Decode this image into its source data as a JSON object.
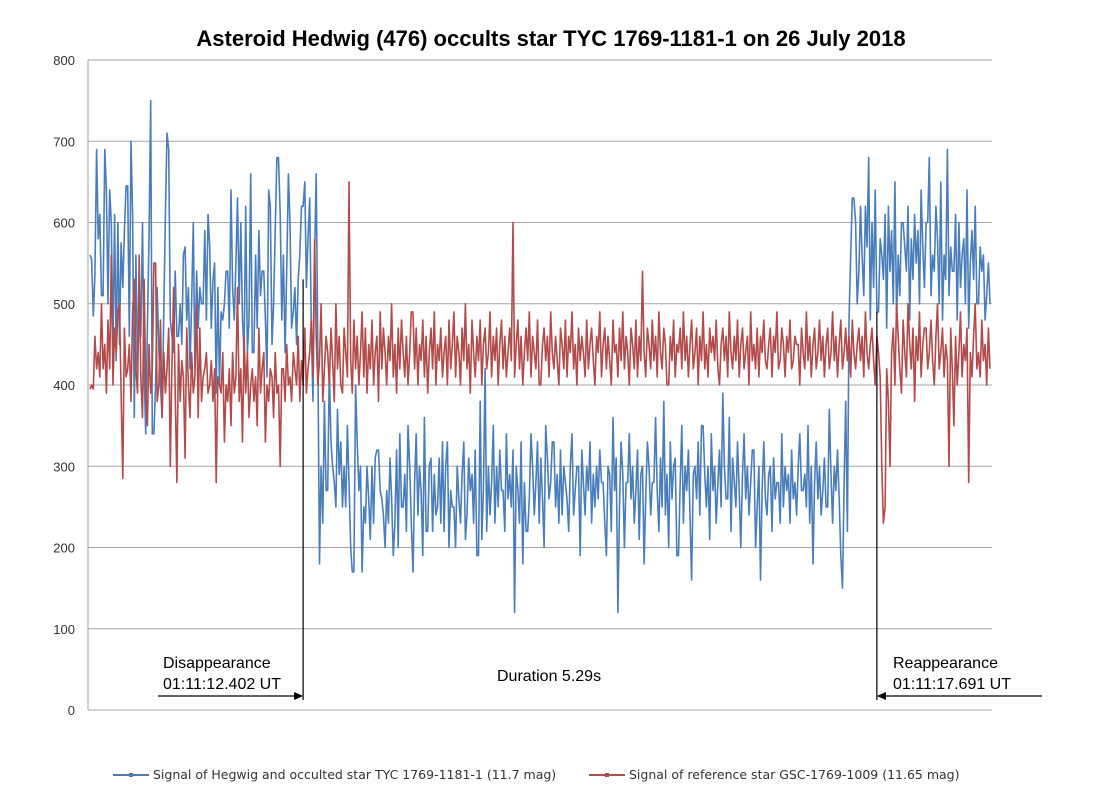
{
  "chart_data": {
    "type": "line",
    "title": "Asteroid Hedwig (476) occults star TYC 1769-1181-1 on 26 July 2018",
    "xlabel": "",
    "ylabel": "",
    "ylim": [
      0,
      800
    ],
    "yticks": [
      0,
      100,
      200,
      300,
      400,
      500,
      600,
      700,
      800
    ],
    "grid": true,
    "legend_position": "bottom",
    "n_samples": 550,
    "annotations": {
      "disappearance_label": "Disappearance",
      "disappearance_time": "01:11:12.402 UT",
      "reappearance_label": "Reappearance",
      "reappearance_time": "01:11:17.691 UT",
      "duration": "Duration 5.29s",
      "disappearance_index": 130,
      "reappearance_index": 480
    },
    "series": [
      {
        "name": "Signal of Hegwig and occulted star TYC 1769-1181-1 (11.7 mag)",
        "color": "#4a7ebb",
        "values": [
          560,
          555,
          485,
          535,
          690,
          580,
          610,
          510,
          690,
          640,
          500,
          640,
          600,
          450,
          610,
          430,
          600,
          450,
          575,
          520,
          590,
          645,
          460,
          700,
          610,
          360,
          560,
          420,
          490,
          460,
          600,
          420,
          340,
          470,
          580,
          750,
          340,
          400,
          520,
          440,
          400,
          360,
          490,
          610,
          710,
          690,
          480,
          460,
          440,
          540,
          460,
          500,
          450,
          560,
          570,
          480,
          520,
          420,
          500,
          600,
          420,
          540,
          470,
          520,
          500,
          590,
          480,
          610,
          570,
          470,
          530,
          550,
          390,
          520,
          400,
          490,
          480,
          500,
          540,
          470,
          640,
          520,
          480,
          550,
          630,
          500,
          600,
          480,
          440,
          620,
          440,
          480,
          660,
          440,
          560,
          470,
          590,
          510,
          540,
          540,
          480,
          410,
          640,
          620,
          450,
          500,
          590,
          680,
          610,
          480,
          560,
          440,
          540,
          660,
          600,
          470,
          490,
          520,
          450,
          530,
          560,
          620,
          650,
          520,
          580,
          630,
          470,
          380,
          560,
          660,
          430,
          180,
          300,
          230,
          380,
          270,
          420,
          330,
          300,
          280,
          250,
          370,
          290,
          330,
          250,
          300,
          250,
          350,
          280,
          200,
          170,
          400,
          330,
          270,
          300,
          170,
          250,
          230,
          300,
          260,
          210,
          300,
          230,
          310,
          320,
          270,
          260,
          240,
          200,
          270,
          230,
          310,
          260,
          190,
          230,
          320,
          200,
          340,
          250,
          290,
          220,
          350,
          300,
          230,
          170,
          280,
          340,
          240,
          300,
          270,
          190,
          360,
          220,
          300,
          310,
          220,
          290,
          240,
          250,
          310,
          230,
          330,
          220,
          300,
          330,
          200,
          270,
          250,
          200,
          300,
          260,
          230,
          290,
          330,
          210,
          240,
          310,
          270,
          290,
          230,
          320,
          190,
          380,
          210,
          270,
          420,
          220,
          300,
          240,
          280,
          350,
          230,
          300,
          250,
          320,
          270,
          220,
          340,
          260,
          290,
          250,
          320,
          120,
          300,
          270,
          230,
          330,
          180,
          280,
          220,
          260,
          340,
          300,
          240,
          280,
          330,
          230,
          310,
          260,
          200,
          350,
          310,
          260,
          280,
          330,
          250,
          290,
          230,
          320,
          240,
          300,
          280,
          260,
          220,
          300,
          340,
          240,
          270,
          300,
          190,
          320,
          280,
          240,
          300,
          270,
          330,
          230,
          290,
          250,
          300,
          260,
          320,
          280,
          230,
          190,
          300,
          290,
          220,
          360,
          270,
          310,
          120,
          250,
          330,
          290,
          200,
          280,
          340,
          260,
          300,
          230,
          270,
          320,
          210,
          290,
          300,
          180,
          260,
          330,
          300,
          240,
          280,
          360,
          270,
          220,
          310,
          250,
          380,
          240,
          290,
          200,
          330,
          260,
          300,
          310,
          190,
          280,
          350,
          230,
          300,
          270,
          320,
          240,
          160,
          290,
          300,
          260,
          330,
          240,
          350,
          290,
          250,
          300,
          210,
          340,
          270,
          300,
          230,
          280,
          320,
          250,
          390,
          300,
          260,
          360,
          220,
          310,
          280,
          250,
          330,
          270,
          200,
          290,
          340,
          260,
          300,
          240,
          280,
          320,
          200,
          250,
          300,
          160,
          270,
          330,
          260,
          240,
          290,
          300,
          220,
          310,
          260,
          280,
          230,
          340,
          250,
          300,
          270,
          290,
          230,
          320,
          260,
          280,
          240,
          300,
          340,
          270,
          290,
          250,
          350,
          230,
          300,
          180,
          280,
          330,
          260,
          300,
          240,
          270,
          310,
          250,
          370,
          290,
          230,
          300,
          270,
          320,
          260,
          190,
          150,
          280,
          380,
          220,
          480,
          560,
          630,
          600,
          500,
          540,
          620,
          560,
          510,
          620,
          570,
          680,
          480,
          600,
          520,
          640,
          490,
          580,
          560,
          530,
          610,
          470,
          620,
          540,
          590,
          500,
          650,
          480,
          560,
          510,
          600,
          570,
          540,
          620,
          480,
          580,
          530,
          610,
          550,
          590,
          500,
          640,
          570,
          520,
          600,
          680,
          510,
          560,
          540,
          620,
          580,
          500,
          650,
          480,
          560,
          530,
          690,
          510,
          570,
          540,
          610,
          480,
          600,
          520,
          560,
          580,
          500,
          640,
          470,
          550,
          590,
          530,
          620,
          500,
          570,
          540,
          560,
          480,
          510,
          550,
          500
        ]
      },
      {
        "name": "Signal of reference star GSC-1769-1009 (11.65 mag)",
        "color": "#b24b4a",
        "values": [
          395,
          400,
          395,
          460,
          420,
          440,
          410,
          500,
          420,
          450,
          390,
          480,
          420,
          560,
          400,
          470,
          440,
          490,
          500,
          390,
          285,
          470,
          410,
          420,
          450,
          380,
          490,
          530,
          420,
          390,
          560,
          410,
          360,
          530,
          400,
          350,
          450,
          390,
          420,
          550,
          380,
          400,
          480,
          360,
          440,
          390,
          420,
          470,
          300,
          430,
          520,
          390,
          280,
          450,
          380,
          430,
          410,
          310,
          470,
          400,
          360,
          440,
          390,
          410,
          500,
          360,
          470,
          380,
          410,
          420,
          440,
          390,
          400,
          430,
          380,
          420,
          280,
          410,
          400,
          390,
          440,
          330,
          400,
          380,
          420,
          350,
          440,
          390,
          410,
          520,
          380,
          420,
          330,
          460,
          390,
          440,
          360,
          400,
          420,
          380,
          410,
          350,
          470,
          390,
          420,
          440,
          330,
          400,
          380,
          420,
          410,
          360,
          440,
          390,
          400,
          300,
          420,
          380,
          450,
          400,
          410,
          380,
          440,
          420,
          400,
          460,
          380,
          430,
          400,
          470,
          390,
          420,
          440,
          480,
          410,
          580,
          460,
          400,
          430,
          500,
          380,
          420,
          460,
          440,
          400,
          470,
          430,
          380,
          500,
          420,
          460,
          400,
          390,
          470,
          440,
          410,
          650,
          430,
          390,
          480,
          420,
          460,
          400,
          440,
          490,
          410,
          470,
          390,
          450,
          420,
          480,
          400,
          440,
          460,
          380,
          490,
          420,
          470,
          440,
          400,
          460,
          430,
          500,
          410,
          450,
          390,
          470,
          420,
          480,
          440,
          410,
          460,
          400,
          440,
          490,
          420,
          470,
          400,
          450,
          430,
          480,
          410,
          460,
          390,
          440,
          470,
          420,
          490,
          400,
          450,
          430,
          470,
          410,
          440,
          460,
          400,
          480,
          420,
          450,
          490,
          410,
          460,
          440,
          400,
          470,
          430,
          500,
          420,
          450,
          390,
          480,
          440,
          410,
          460,
          430,
          480,
          400,
          450,
          470,
          420,
          440,
          490,
          410,
          460,
          430,
          470,
          400,
          450,
          480,
          420,
          460,
          410,
          440,
          470,
          430,
          600,
          410,
          450,
          480,
          420,
          460,
          400,
          440,
          470,
          430,
          490,
          410,
          460,
          440,
          420,
          480,
          400,
          450,
          470,
          430,
          460,
          410,
          490,
          440,
          420,
          460,
          430,
          400,
          470,
          450,
          420,
          480,
          410,
          460,
          440,
          490,
          420,
          450,
          400,
          470,
          430,
          460,
          440,
          410,
          480,
          420,
          450,
          470,
          430,
          400,
          460,
          440,
          490,
          410,
          450,
          470,
          420,
          460,
          430,
          400,
          480,
          440,
          450,
          410,
          470,
          430,
          490,
          420,
          460,
          440,
          400,
          470,
          450,
          420,
          480,
          410,
          460,
          430,
          540,
          440,
          410,
          470,
          450,
          420,
          480,
          430,
          460,
          410,
          490,
          440,
          420,
          470,
          450,
          400,
          460,
          430,
          480,
          410,
          450,
          440,
          470,
          420,
          490,
          430,
          460,
          410,
          450,
          480,
          420,
          440,
          470,
          400,
          460,
          430,
          490,
          420,
          450,
          410,
          470,
          440,
          460,
          430,
          480,
          420,
          400,
          450,
          470,
          430,
          460,
          410,
          490,
          440,
          420,
          460,
          430,
          480,
          410,
          450,
          470,
          420,
          440,
          460,
          400,
          490,
          430,
          450,
          420,
          470,
          410,
          460,
          440,
          480,
          430,
          420,
          450,
          470,
          410,
          460,
          440,
          490,
          420,
          430,
          470,
          450,
          410,
          460,
          440,
          480,
          420,
          430,
          460,
          450,
          400,
          470,
          440,
          420,
          490,
          430,
          460,
          410,
          450,
          470,
          420,
          440,
          480,
          430,
          460,
          410,
          450,
          470,
          420,
          440,
          490,
          430,
          460,
          410,
          450,
          480,
          420,
          440,
          470,
          430,
          460,
          410,
          480,
          440,
          420,
          450,
          470,
          430,
          460,
          410,
          490,
          440,
          420,
          450,
          470,
          430,
          400,
          460,
          440,
          410,
          300,
          230,
          250,
          420,
          380,
          300,
          440,
          470,
          400,
          500,
          460,
          420,
          390,
          480,
          440,
          410,
          500,
          450,
          420,
          470,
          380,
          460,
          430,
          490,
          410,
          450,
          470,
          420,
          440,
          480,
          430,
          400,
          460,
          500,
          420,
          440,
          470,
          410,
          450,
          430,
          300,
          470,
          420,
          350,
          460,
          400,
          440,
          490,
          410,
          450,
          430,
          470,
          280,
          440,
          410,
          460,
          500,
          420,
          440,
          410,
          480,
          430,
          450,
          400,
          470,
          420
        ]
      }
    ]
  }
}
